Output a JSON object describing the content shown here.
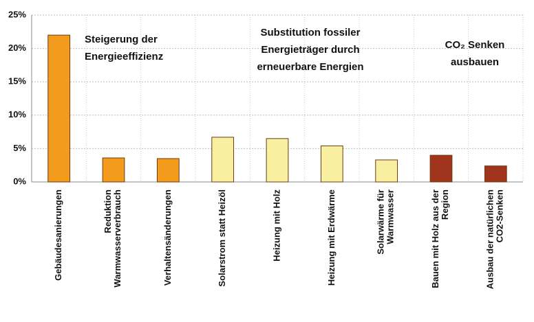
{
  "chart_data": {
    "type": "bar",
    "categories": [
      "Gebäudesanierungen",
      "Reduktion\nWarmwasserverbrauch",
      "Verhaltensänderungen",
      "Solarstrom statt Heizöl",
      "Heizung mit Holz",
      "Heizung mit Erdwärme",
      "Solarwärme für\nWarmwasser",
      "Bauen mit Holz aus der\nRegion",
      "Ausbau der natürlichen\nCO2-Senken"
    ],
    "values": [
      22,
      3.6,
      3.5,
      6.7,
      6.5,
      5.4,
      3.3,
      4.0,
      2.4
    ],
    "colors": [
      "#f29b1d",
      "#f29b1d",
      "#f29b1d",
      "#f8f0a0",
      "#f8f0a0",
      "#f8f0a0",
      "#f8f0a0",
      "#a0341c",
      "#a0341c"
    ],
    "ylim": [
      0,
      25
    ],
    "yticks": [
      {
        "value": 0,
        "label": "0%"
      },
      {
        "value": 5,
        "label": "5%"
      },
      {
        "value": 10,
        "label": "10%"
      },
      {
        "value": 15,
        "label": "15%"
      },
      {
        "value": 20,
        "label": "20%"
      },
      {
        "value": 25,
        "label": "25%"
      }
    ],
    "grid": true,
    "annotations": [
      {
        "lines": [
          "Steigerung der",
          "Energieeffizienz"
        ]
      },
      {
        "lines": [
          "Substitution fossiler",
          "Energieträger durch",
          "erneuerbare Energien"
        ]
      },
      {
        "lines": [
          "CO₂ Senken",
          "ausbauen"
        ]
      }
    ]
  }
}
